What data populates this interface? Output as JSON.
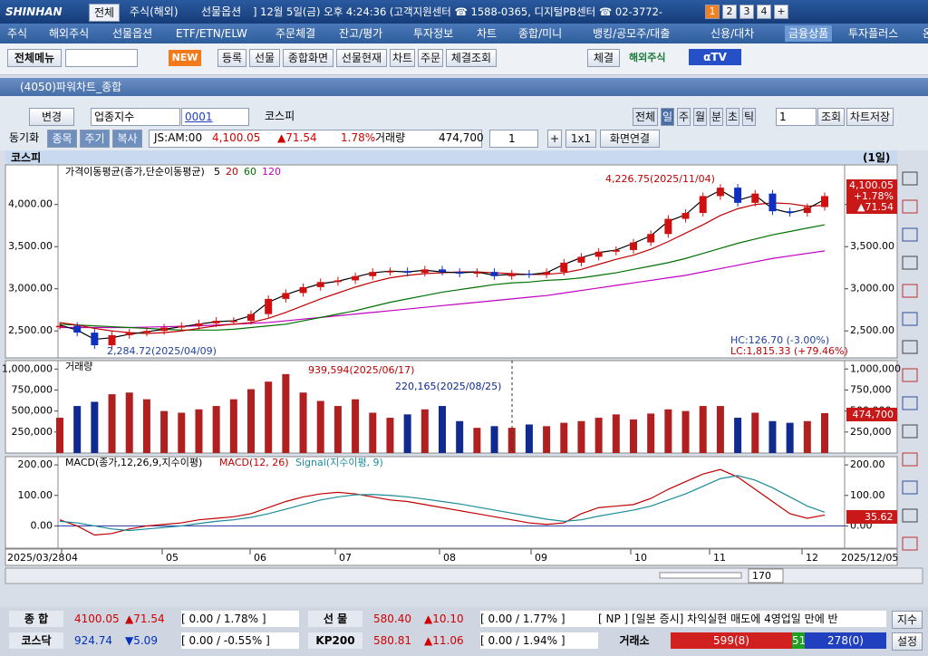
{
  "titlebar": {
    "logo": "SHINHAN",
    "tabs": [
      "전체",
      "주식(해외)",
      "선물옵션"
    ],
    "info": "] 12월 5일(금) 오후 4:24:36 (고객지원센터 ☎ 1588-0365, 디지털PB센터 ☎ 02-3772-",
    "screens": [
      "1",
      "2",
      "3",
      "4",
      "+"
    ]
  },
  "menu": [
    "주식",
    "해외주식",
    "선물옵션",
    "ETF/ETN/ELW",
    "주문체결",
    "잔고/평가",
    "투자정보",
    "차트",
    "종합/미니",
    "뱅킹/공모주/대출",
    "신용/대차",
    "금융상품",
    "투자플러스",
    "온라인지점"
  ],
  "toolbar": {
    "all_menu": "전체메뉴",
    "new": "NEW",
    "buttons": [
      "등록",
      "선물",
      "종합화면",
      "선물현재",
      "차트",
      "주문",
      "체결조회"
    ],
    "fill": "체결",
    "overseas": "해외주식",
    "tv": "αTV"
  },
  "window": {
    "title": "(4050)파워차트_종합"
  },
  "controls": {
    "change": "변경",
    "market": "업종지수",
    "code": "0001",
    "name": "코스피",
    "periods": [
      "전체",
      "일",
      "주",
      "월",
      "분",
      "초",
      "틱"
    ],
    "count": "1",
    "query": "조회",
    "save": "차트저장",
    "sync": "동기화",
    "sync_buttons": [
      "종목",
      "주기",
      "복사"
    ],
    "time": "JS:AM:00",
    "price": "4,100.05",
    "change_value": "▲71.54",
    "change_rate": "1.78%",
    "volume_label": "거래량",
    "volume": "474,700",
    "layout_count": "1",
    "plus": "+",
    "grid": "1x1",
    "link": "화면연결"
  },
  "chart": {
    "title": "코스피",
    "period": "(1일)",
    "price": {
      "legend": "가격이동평균(종가,단순이동평균)",
      "close": [
        2560,
        2480,
        2330,
        2450,
        2480,
        2500,
        2540,
        2560,
        2590,
        2620,
        2620,
        2700,
        2880,
        2950,
        3020,
        3080,
        3100,
        3150,
        3200,
        3210,
        3190,
        3230,
        3200,
        3180,
        3200,
        3150,
        3180,
        3170,
        3200,
        3310,
        3380,
        3440,
        3460,
        3550,
        3650,
        3830,
        3900,
        4100,
        4200,
        4020,
        4130,
        3920,
        3900,
        3970,
        4100.05
      ],
      "series": [
        {
          "name": "5",
          "color": "#000000",
          "values": [
            2570,
            2510,
            2400,
            2420,
            2460,
            2490,
            2520,
            2550,
            2580,
            2610,
            2620,
            2680,
            2840,
            2930,
            3000,
            3060,
            3090,
            3140,
            3190,
            3210,
            3200,
            3220,
            3200,
            3190,
            3200,
            3160,
            3170,
            3170,
            3190,
            3290,
            3370,
            3430,
            3460,
            3540,
            3630,
            3800,
            3880,
            4060,
            4170,
            4050,
            4110,
            3950,
            3900,
            3950,
            4060
          ]
        },
        {
          "name": "20",
          "color": "#c00000",
          "values": [
            2600,
            2570,
            2530,
            2500,
            2480,
            2470,
            2480,
            2500,
            2530,
            2560,
            2580,
            2600,
            2650,
            2720,
            2800,
            2880,
            2950,
            3020,
            3080,
            3130,
            3160,
            3180,
            3190,
            3200,
            3200,
            3190,
            3180,
            3170,
            3170,
            3190,
            3230,
            3290,
            3350,
            3400,
            3470,
            3560,
            3660,
            3760,
            3870,
            3950,
            4000,
            4020,
            4010,
            3980,
            3990
          ]
        },
        {
          "name": "60",
          "color": "#007000",
          "values": [
            2580,
            2570,
            2560,
            2550,
            2540,
            2530,
            2520,
            2510,
            2510,
            2510,
            2520,
            2540,
            2560,
            2580,
            2620,
            2660,
            2700,
            2740,
            2790,
            2840,
            2880,
            2920,
            2960,
            2990,
            3020,
            3050,
            3070,
            3080,
            3100,
            3110,
            3130,
            3160,
            3190,
            3230,
            3270,
            3310,
            3360,
            3420,
            3480,
            3540,
            3590,
            3640,
            3680,
            3720,
            3760
          ]
        },
        {
          "name": "120",
          "color": "#c000c0",
          "values": [
            2540,
            2540,
            2540,
            2540,
            2540,
            2545,
            2550,
            2555,
            2560,
            2570,
            2580,
            2590,
            2600,
            2620,
            2640,
            2660,
            2680,
            2700,
            2720,
            2740,
            2760,
            2780,
            2800,
            2820,
            2840,
            2860,
            2880,
            2900,
            2920,
            2950,
            2980,
            3010,
            3040,
            3070,
            3100,
            3130,
            3160,
            3200,
            3240,
            3280,
            3320,
            3360,
            3390,
            3420,
            3450
          ]
        }
      ],
      "ylim": [
        2180,
        4470
      ],
      "yticks": [
        {
          "value": 2500,
          "label": "2,500.00"
        },
        {
          "value": 3000,
          "label": "3,000.00"
        },
        {
          "value": 3500,
          "label": "3,500.00"
        },
        {
          "value": 4000,
          "label": "4,000.00"
        }
      ],
      "annotations": {
        "high": "4,226.75(2025/11/04)",
        "low": "2,284.72(2025/04/09)",
        "hc": "HC:126.70 (-3.00%)",
        "lc": "LC:1,815.33 (+79.46%)"
      },
      "last": {
        "price": "4,100.05",
        "rate": "+1.78%",
        "change": "▲71.54"
      }
    },
    "volume": {
      "legend": "거래량",
      "values": [
        420000,
        560000,
        610000,
        700000,
        720000,
        640000,
        500000,
        480000,
        520000,
        560000,
        640000,
        760000,
        850000,
        939594,
        720000,
        620000,
        560000,
        640000,
        480000,
        420000,
        460000,
        520000,
        560000,
        380000,
        300000,
        320000,
        300000,
        340000,
        320000,
        360000,
        380000,
        420000,
        460000,
        400000,
        470000,
        520000,
        500000,
        560000,
        560000,
        420000,
        480000,
        380000,
        360000,
        380000,
        474700
      ],
      "ylim": [
        0,
        1100000
      ],
      "yticks": [
        {
          "value": 250000,
          "label": "250,000"
        },
        {
          "value": 500000,
          "label": "500,000"
        },
        {
          "value": 750000,
          "label": "750,000"
        },
        {
          "value": 1000000,
          "label": "1,000,000"
        }
      ],
      "annotations": {
        "peak": "939,594(2025/06/17)",
        "marker": "220,165(2025/08/25)"
      },
      "last": "474,700"
    },
    "macd": {
      "legend": "MACD(종가,12,26,9,지수이평)",
      "series": [
        {
          "name": "MACD(12, 26)",
          "color": "#c00000",
          "values": [
            20,
            0,
            -30,
            -25,
            -10,
            0,
            5,
            10,
            20,
            25,
            30,
            40,
            60,
            80,
            95,
            105,
            110,
            105,
            95,
            85,
            80,
            70,
            60,
            50,
            40,
            30,
            20,
            10,
            5,
            10,
            40,
            60,
            65,
            70,
            90,
            120,
            145,
            170,
            185,
            160,
            120,
            80,
            40,
            25,
            35.62
          ]
        },
        {
          "name": "Signal(지수이평, 9)",
          "color": "#1a8a9a",
          "values": [
            15,
            10,
            0,
            -10,
            -15,
            -10,
            -5,
            0,
            8,
            15,
            20,
            28,
            40,
            55,
            70,
            85,
            95,
            102,
            103,
            100,
            95,
            88,
            80,
            72,
            62,
            52,
            42,
            32,
            22,
            15,
            20,
            32,
            42,
            52,
            65,
            85,
            105,
            130,
            155,
            165,
            150,
            125,
            95,
            65,
            45
          ]
        }
      ],
      "ylim": [
        -73,
        227
      ],
      "yticks": [
        {
          "value": 0,
          "label": "0.00"
        },
        {
          "value": 100,
          "label": "100.00"
        },
        {
          "value": 200,
          "label": "200.00"
        }
      ],
      "last": "35.62"
    },
    "x_labels": [
      "2025/03/28",
      "04",
      "05",
      "06",
      "07",
      "08",
      "09",
      "10",
      "11",
      "12",
      "2025/12/05"
    ],
    "scroll": "170"
  },
  "ticker": {
    "rows": [
      [
        {
          "name": "종 합",
          "price": "4100.05",
          "change": "▲71.54",
          "detail": "[ 0.00  / 1.78%  ]"
        },
        {
          "name": "선 물",
          "price": "580.40",
          "change": "▲10.10",
          "detail": "[ 0.00  / 1.77%  ]"
        }
      ],
      [
        {
          "name": "코스닥",
          "price": "924.74",
          "change": "▼5.09",
          "detail": "[ 0.00  / -0.55%  ]"
        },
        {
          "name": "KP200",
          "price": "580.81",
          "change": "▲11.06",
          "detail": "[ 0.00  / 1.94%  ]"
        }
      ]
    ],
    "news": "[ NP ] [일본 증시] 차익실현 매도에 4영업일 만에 반",
    "index": "지수",
    "exchange": "거래소",
    "up": "599(8)",
    "flat": "51",
    "down": "278(0)",
    "settings": "설정"
  }
}
